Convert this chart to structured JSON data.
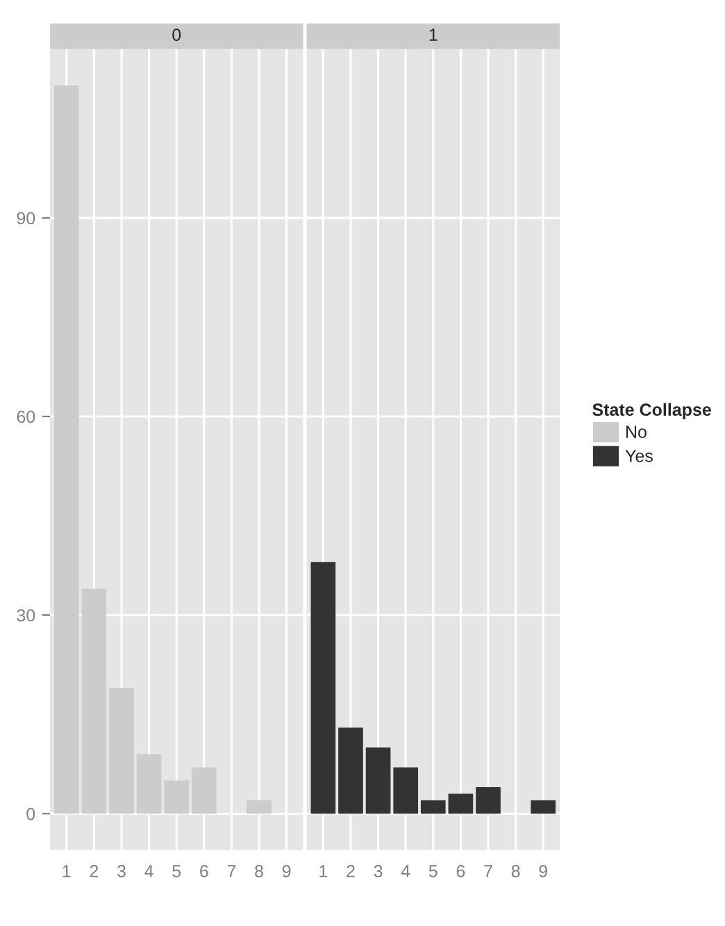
{
  "chart_data": [
    {
      "type": "bar",
      "title": "0",
      "categories": [
        "1",
        "2",
        "3",
        "4",
        "5",
        "6",
        "7",
        "8",
        "9"
      ],
      "ylim": [
        -5.5,
        115.5
      ],
      "yticks": [
        0,
        30,
        60,
        90
      ],
      "grid": true,
      "legend": "right",
      "legend_title": "State Collapse",
      "series": [
        {
          "name": "No",
          "color": "#cccccc",
          "values": [
            110,
            34,
            19,
            9,
            5,
            7,
            0,
            2,
            0
          ]
        }
      ]
    },
    {
      "type": "bar",
      "title": "1",
      "categories": [
        "1",
        "2",
        "3",
        "4",
        "5",
        "6",
        "7",
        "8",
        "9"
      ],
      "ylim": [
        -5.5,
        115.5
      ],
      "yticks": [
        0,
        30,
        60,
        90
      ],
      "grid": true,
      "legend": "right",
      "tick_labels": "x",
      "series": [
        {
          "name": "Yes",
          "color": "#333333",
          "values": [
            38,
            13,
            10,
            7,
            2,
            3,
            4,
            0,
            2
          ]
        }
      ]
    }
  ]
}
